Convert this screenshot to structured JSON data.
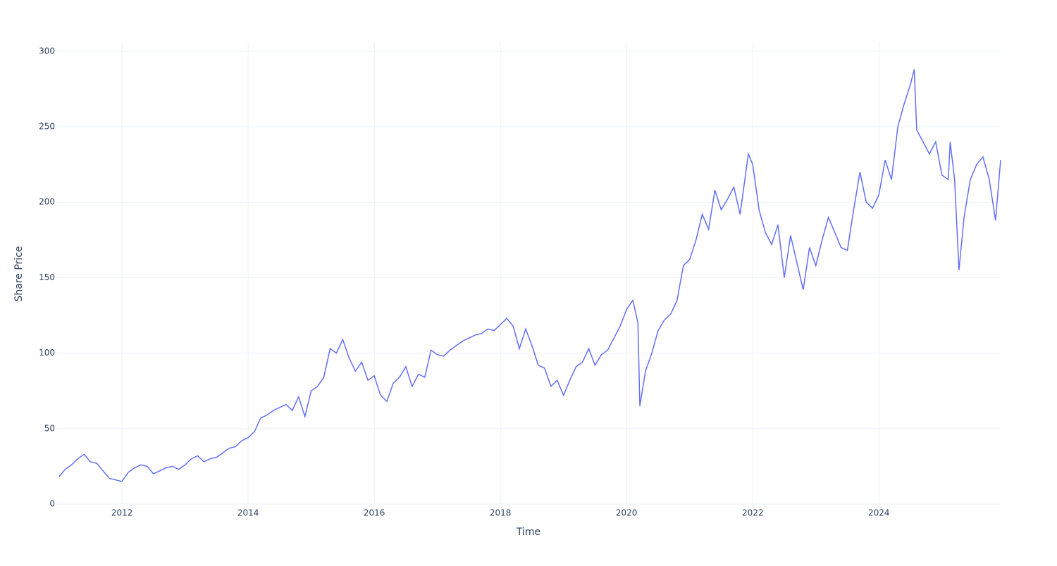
{
  "chart_data": {
    "type": "line",
    "x_label": "Time",
    "y_label": "Share Price",
    "x": [
      2011.0,
      2011.1,
      2011.2,
      2011.3,
      2011.4,
      2011.5,
      2011.6,
      2011.7,
      2011.8,
      2011.9,
      2012.0,
      2012.1,
      2012.2,
      2012.3,
      2012.4,
      2012.5,
      2012.6,
      2012.7,
      2012.8,
      2012.9,
      2013.0,
      2013.1,
      2013.2,
      2013.3,
      2013.4,
      2013.5,
      2013.6,
      2013.7,
      2013.8,
      2013.9,
      2014.0,
      2014.1,
      2014.2,
      2014.3,
      2014.4,
      2014.5,
      2014.6,
      2014.7,
      2014.8,
      2014.9,
      2015.0,
      2015.1,
      2015.2,
      2015.3,
      2015.4,
      2015.5,
      2015.6,
      2015.7,
      2015.8,
      2015.9,
      2016.0,
      2016.1,
      2016.2,
      2016.3,
      2016.4,
      2016.5,
      2016.6,
      2016.7,
      2016.8,
      2016.9,
      2017.0,
      2017.1,
      2017.2,
      2017.3,
      2017.4,
      2017.5,
      2017.6,
      2017.7,
      2017.8,
      2017.9,
      2018.0,
      2018.1,
      2018.2,
      2018.3,
      2018.4,
      2018.5,
      2018.6,
      2018.7,
      2018.8,
      2018.9,
      2019.0,
      2019.1,
      2019.2,
      2019.3,
      2019.4,
      2019.5,
      2019.6,
      2019.7,
      2019.8,
      2019.9,
      2020.0,
      2020.1,
      2020.18,
      2020.21,
      2020.3,
      2020.4,
      2020.5,
      2020.6,
      2020.7,
      2020.8,
      2020.9,
      2021.0,
      2021.1,
      2021.2,
      2021.3,
      2021.4,
      2021.5,
      2021.6,
      2021.7,
      2021.8,
      2021.93,
      2022.0,
      2022.1,
      2022.2,
      2022.3,
      2022.4,
      2022.5,
      2022.6,
      2022.7,
      2022.8,
      2022.9,
      2023.0,
      2023.1,
      2023.2,
      2023.3,
      2023.4,
      2023.5,
      2023.6,
      2023.7,
      2023.8,
      2023.9,
      2024.0,
      2024.1,
      2024.2,
      2024.3,
      2024.4,
      2024.5,
      2024.56,
      2024.6,
      2024.7,
      2024.8,
      2024.9,
      2025.0,
      2025.1,
      2025.13,
      2025.2,
      2025.27,
      2025.35,
      2025.45,
      2025.55,
      2025.65,
      2025.75,
      2025.85,
      2025.93
    ],
    "series": [
      {
        "color": "#636efa",
        "values": [
          18,
          23,
          26,
          30,
          33,
          28,
          27,
          22,
          17,
          16,
          15,
          21,
          24,
          26,
          25,
          20,
          22,
          24,
          25,
          23,
          26,
          30,
          32,
          28,
          30,
          31,
          34,
          37,
          38,
          42,
          44,
          48,
          57,
          59,
          62,
          64,
          66,
          62,
          71,
          58,
          75,
          78,
          84,
          103,
          100,
          109,
          97,
          88,
          94,
          82,
          85,
          72,
          68,
          80,
          84,
          91,
          78,
          86,
          84,
          102,
          99,
          98,
          102,
          105,
          108,
          110,
          112,
          113,
          116,
          115,
          119,
          123,
          118,
          103,
          116,
          105,
          92,
          90,
          78,
          82,
          72,
          82,
          91,
          94,
          103,
          92,
          99,
          102,
          110,
          118,
          129,
          135,
          120,
          65,
          88,
          100,
          115,
          122,
          126,
          135,
          158,
          162,
          175,
          192,
          182,
          208,
          195,
          202,
          210,
          192,
          232,
          225,
          195,
          180,
          172,
          185,
          150,
          178,
          160,
          142,
          170,
          158,
          175,
          190,
          180,
          170,
          168,
          195,
          220,
          200,
          196,
          205,
          228,
          215,
          250,
          265,
          278,
          288,
          248,
          240,
          232,
          240,
          218,
          215,
          240,
          215,
          155,
          190,
          215,
          225,
          230,
          215,
          188,
          228
        ]
      }
    ],
    "xlim": [
      2010.96,
      2025.93
    ],
    "xticks": [
      2012,
      2014,
      2016,
      2018,
      2020,
      2022,
      2024
    ],
    "ylim": [
      0,
      306
    ],
    "yticks": [
      0,
      50,
      100,
      150,
      200,
      250,
      300
    ],
    "grid": true
  }
}
